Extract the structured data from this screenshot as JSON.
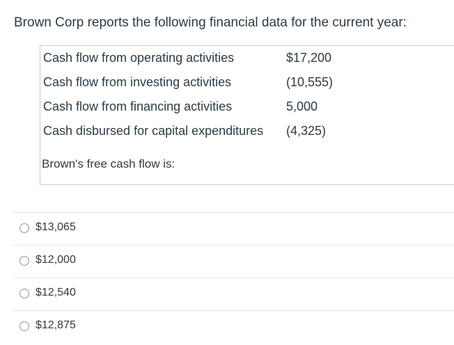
{
  "question": {
    "text": "Brown Corp reports the following financial data for the current year:",
    "rows": [
      {
        "label": "Cash flow from operating activities",
        "value": "$17,200"
      },
      {
        "label": "Cash flow from investing activities",
        "value": "(10,555)"
      },
      {
        "label": "Cash flow from financing activities",
        "value": "5,000"
      },
      {
        "label": "Cash disbursed for capital expenditures",
        "value": "(4,325)"
      }
    ],
    "prompt": "Brown's free cash flow is:"
  },
  "answers": [
    {
      "label": "$13,065"
    },
    {
      "label": "$12,000"
    },
    {
      "label": "$12,540"
    },
    {
      "label": "$12,875"
    }
  ]
}
